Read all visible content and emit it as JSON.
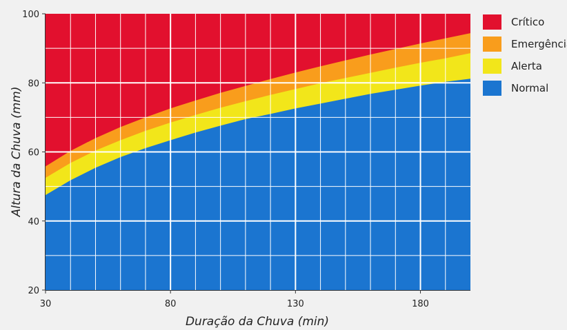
{
  "chart_data": {
    "type": "area",
    "title": "",
    "xlabel": "Duração da Chuva (min)",
    "ylabel": "Altura da Chuva (mm)",
    "xlim": [
      30,
      200
    ],
    "ylim": [
      20,
      100
    ],
    "x_ticks": [
      30,
      80,
      130,
      180
    ],
    "y_ticks": [
      20,
      40,
      60,
      80,
      100
    ],
    "grid": true,
    "legend_position": "top-right",
    "x": [
      30,
      40,
      50,
      60,
      70,
      80,
      90,
      100,
      110,
      120,
      130,
      140,
      150,
      160,
      170,
      180,
      190,
      200
    ],
    "boundaries": [
      {
        "name": "Normal",
        "values": [
          47.5,
          51.8,
          55.4,
          58.5,
          61.1,
          63.4,
          65.6,
          67.6,
          69.5,
          71.0,
          72.6,
          74.0,
          75.4,
          76.8,
          78.0,
          79.2,
          80.3,
          81.2
        ]
      },
      {
        "name": "Alerta",
        "values": [
          52.5,
          56.8,
          60.4,
          63.4,
          66.1,
          68.5,
          70.7,
          72.8,
          74.7,
          76.5,
          78.2,
          79.9,
          81.4,
          82.9,
          84.4,
          85.8,
          87.1,
          88.6
        ]
      },
      {
        "name": "Emergência",
        "values": [
          55.8,
          60.3,
          64.0,
          67.2,
          70.0,
          72.6,
          74.9,
          77.1,
          79.1,
          81.1,
          83.0,
          84.8,
          86.5,
          88.2,
          89.8,
          91.4,
          92.9,
          94.4
        ]
      },
      {
        "name": "Crítico",
        "values": [
          100,
          100,
          100,
          100,
          100,
          100,
          100,
          100,
          100,
          100,
          100,
          100,
          100,
          100,
          100,
          100,
          100,
          100
        ]
      }
    ],
    "legend": [
      {
        "name": "Crítico",
        "color": "#e2102e"
      },
      {
        "name": "Emergência",
        "color": "#f99d1c"
      },
      {
        "name": "Alerta",
        "color": "#f2e61a"
      },
      {
        "name": "Normal",
        "color": "#1b75d0"
      }
    ],
    "colors": {
      "grid": "#ffffff",
      "background": "#f1f1f1",
      "axis": "#333333"
    }
  }
}
